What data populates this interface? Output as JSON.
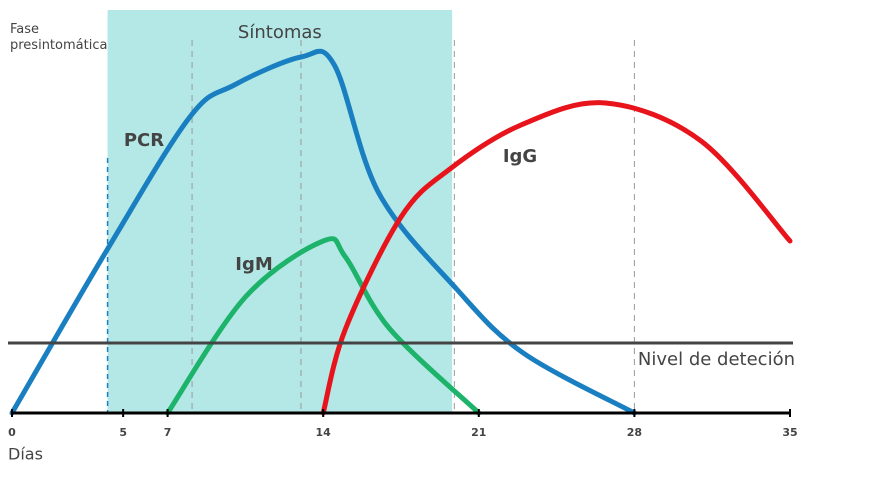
{
  "chart_data": {
    "type": "line",
    "title": "Síntomas",
    "phase_label": "Fase presintomática",
    "x_label": "Días",
    "xlim": [
      0,
      35
    ],
    "xticks": [
      0,
      5,
      7,
      14,
      21,
      28,
      35
    ],
    "ylim": [
      0,
      100
    ],
    "symptoms_range": [
      4.3,
      19.8
    ],
    "reference_lines": [
      8.1,
      13,
      19.9,
      28
    ],
    "detection_level": {
      "value": 17.5,
      "label": "Nivel de deteción"
    },
    "series": [
      {
        "name": "PCR",
        "color": "#1a7fc1",
        "x": [
          0,
          4.3,
          8,
          10,
          13,
          14.5,
          16.5,
          20,
          23,
          28
        ],
        "values": [
          0,
          41,
          74,
          82,
          89,
          87,
          55,
          31,
          15,
          0
        ]
      },
      {
        "name": "IgM",
        "color": "#1db36a",
        "x": [
          7,
          10.5,
          14,
          15,
          17,
          21
        ],
        "values": [
          0,
          29,
          43,
          39,
          21,
          0
        ]
      },
      {
        "name": "IgG",
        "color": "#e8141c",
        "x": [
          14,
          15,
          17.5,
          19.7,
          22.9,
          26.7,
          31,
          35
        ],
        "values": [
          0,
          21,
          49,
          61,
          72,
          77.5,
          68,
          43
        ]
      }
    ]
  }
}
